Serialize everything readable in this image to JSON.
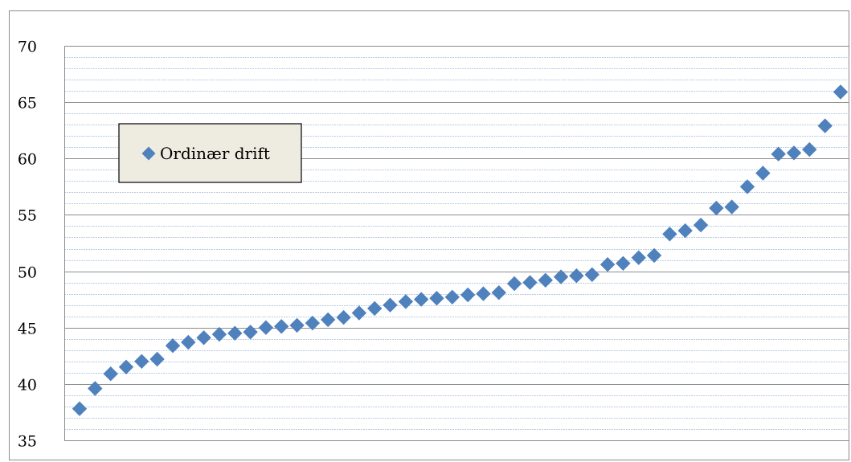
{
  "chart_data": {
    "type": "scatter",
    "title": "",
    "xlabel": "",
    "ylabel": "",
    "ylim": [
      35,
      70
    ],
    "yticks": [
      35,
      40,
      45,
      50,
      55,
      60,
      65,
      70
    ],
    "y_tick_labels": [
      "35",
      "40",
      "45",
      "50",
      "55",
      "60",
      "65",
      "70"
    ],
    "grid": {
      "major": true,
      "minor": true,
      "minor_step": 1
    },
    "legend": {
      "position": "upper-left",
      "entries": [
        "Ordinær drift"
      ]
    },
    "series": [
      {
        "name": "Ordinær drift",
        "marker": "diamond",
        "color": "#4f81bd",
        "x": [
          1,
          2,
          3,
          4,
          5,
          6,
          7,
          8,
          9,
          10,
          11,
          12,
          13,
          14,
          15,
          16,
          17,
          18,
          19,
          20,
          21,
          22,
          23,
          24,
          25,
          26,
          27,
          28,
          29,
          30,
          31,
          32,
          33,
          34,
          35,
          36,
          37,
          38,
          39,
          40,
          41,
          42,
          43,
          44,
          45,
          46,
          47,
          48,
          49,
          50
        ],
        "values": [
          37.8,
          39.6,
          40.9,
          41.5,
          42.0,
          42.2,
          43.4,
          43.7,
          44.1,
          44.4,
          44.5,
          44.6,
          45.0,
          45.1,
          45.2,
          45.4,
          45.7,
          45.9,
          46.3,
          46.7,
          47.0,
          47.3,
          47.5,
          47.6,
          47.7,
          47.9,
          48.0,
          48.1,
          48.9,
          49.0,
          49.2,
          49.5,
          49.6,
          49.7,
          50.6,
          50.7,
          51.2,
          51.4,
          53.3,
          53.6,
          54.1,
          55.6,
          55.7,
          57.5,
          58.7,
          60.4,
          60.5,
          60.8,
          62.9,
          65.9
        ]
      }
    ]
  }
}
